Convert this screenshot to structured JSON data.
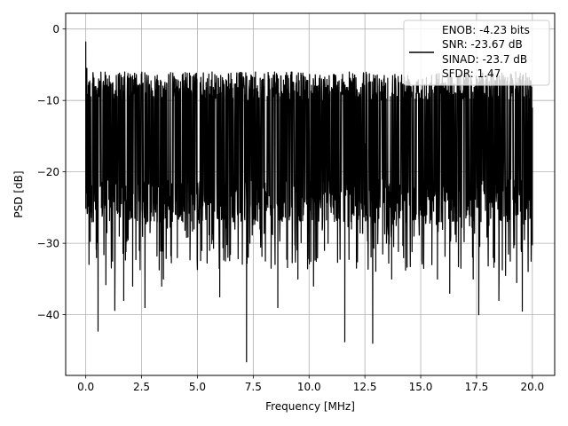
{
  "chart_data": {
    "type": "line",
    "title": "",
    "xlabel": "Frequency [MHz]",
    "ylabel": "PSD [dB]",
    "xlim": [
      -0.9,
      21.0
    ],
    "ylim": [
      -48.5,
      2.2
    ],
    "grid": true,
    "x_ticks": [
      {
        "value": 0.0,
        "label": "0.0"
      },
      {
        "value": 2.5,
        "label": "2.5"
      },
      {
        "value": 5.0,
        "label": "5.0"
      },
      {
        "value": 7.5,
        "label": "7.5"
      },
      {
        "value": 10.0,
        "label": "10.0"
      },
      {
        "value": 12.5,
        "label": "12.5"
      },
      {
        "value": 15.0,
        "label": "15.0"
      },
      {
        "value": 17.5,
        "label": "17.5"
      },
      {
        "value": 20.0,
        "label": "20.0"
      }
    ],
    "y_ticks": [
      {
        "value": 0,
        "label": "0"
      },
      {
        "value": -10,
        "label": "−10"
      },
      {
        "value": -20,
        "label": "−20"
      },
      {
        "value": -30,
        "label": "−30"
      },
      {
        "value": -40,
        "label": "−40"
      }
    ],
    "legend": {
      "placement": "top-right",
      "entries": [
        "ENOB: -4.23 bits",
        "SNR: -23.67 dB",
        "SINAD: -23.7 dB",
        "SFDR: 1.47"
      ]
    },
    "series": [
      {
        "color": "#000000",
        "x_range": [
          0.0,
          20.0
        ],
        "noise_band": {
          "typical_low": -26.0,
          "typical_high": -8.5
        },
        "x": [
          0.0,
          0.05,
          0.1,
          0.2,
          0.28,
          0.35,
          0.48,
          0.55,
          0.7,
          0.9,
          1.05,
          1.2,
          1.3,
          1.5,
          1.7,
          1.88,
          2.1,
          2.4,
          2.65,
          3.2,
          3.4,
          3.48,
          3.85,
          4.1,
          4.4,
          4.85,
          5.2,
          5.55,
          6.0,
          6.35,
          6.8,
          7.2,
          7.35,
          7.8,
          8.3,
          8.6,
          9.1,
          9.5,
          9.75,
          10.2,
          10.85,
          11.35,
          11.6,
          11.9,
          12.5,
          12.85,
          13.3,
          13.7,
          14.35,
          14.7,
          15.5,
          15.75,
          16.3,
          16.8,
          17.05,
          17.35,
          17.6,
          18.25,
          18.5,
          18.8,
          19.3,
          19.55,
          19.9,
          20.0
        ],
        "y": [
          -1.8,
          -5.5,
          -20.5,
          -13.0,
          -27.0,
          -11.0,
          -32.0,
          -42.3,
          -25.0,
          -35.8,
          -16.0,
          -32.5,
          -39.4,
          -29.0,
          -38.0,
          -15.0,
          -36.0,
          -31.0,
          -39.0,
          -27.0,
          -36.0,
          -35.0,
          -26.0,
          -32.0,
          -12.0,
          -28.0,
          -29.5,
          -31.0,
          -37.5,
          -29.0,
          -24.0,
          -46.6,
          -30.0,
          -28.0,
          -33.5,
          -39.0,
          -9.0,
          -35.0,
          -23.5,
          -36.0,
          -30.0,
          -25.5,
          -43.8,
          -28.0,
          -16.0,
          -44.0,
          -31.5,
          -35.0,
          -27.0,
          -29.0,
          -33.0,
          -35.0,
          -37.0,
          -33.5,
          -15.0,
          -35.0,
          -40.0,
          -32.0,
          -38.0,
          -34.5,
          -35.5,
          -39.5,
          -24.0,
          -11.0
        ]
      }
    ]
  }
}
